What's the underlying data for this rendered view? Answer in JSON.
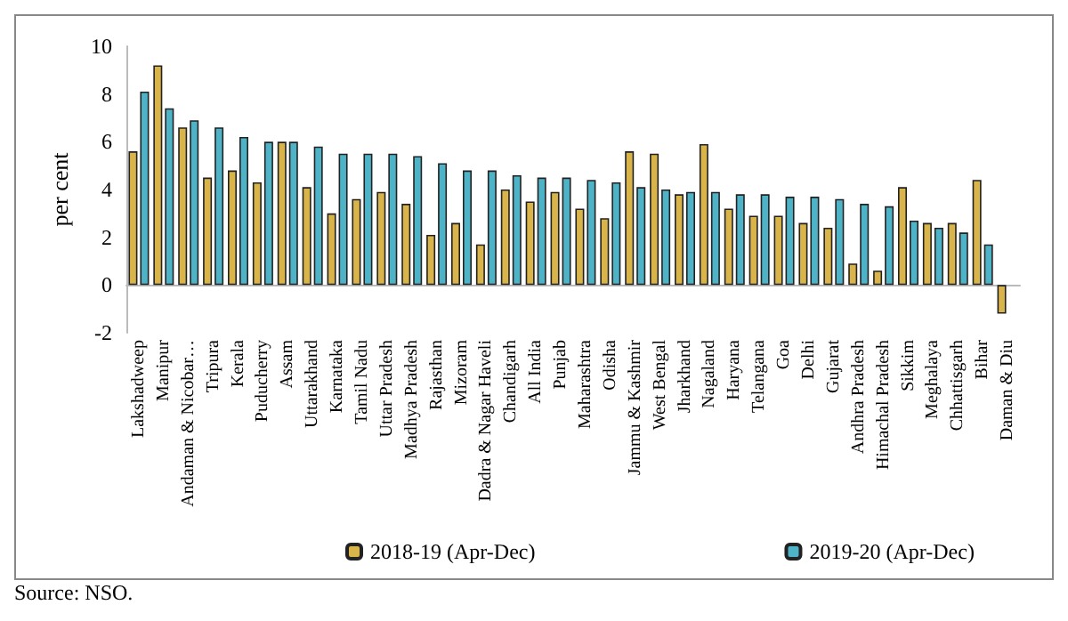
{
  "chart_data": {
    "type": "bar",
    "ylabel": "per cent",
    "categories": [
      "Lakshadweep",
      "Manipur",
      "Andaman & Nicobar…",
      "Tripura",
      "Kerala",
      "Puducherry",
      "Assam",
      "Uttarakhand",
      "Karnataka",
      "Tamil Nadu",
      "Uttar Pradesh",
      "Madhya Pradesh",
      "Rajasthan",
      "Mizoram",
      "Dadra & Nagar Haveli",
      "Chandigarh",
      "All India",
      "Punjab",
      "Maharashtra",
      "Odisha",
      "Jammu & Kashmir",
      "West Bengal",
      "Jharkhand",
      "Nagaland",
      "Haryana",
      "Telangana",
      "Goa",
      "Delhi",
      "Gujarat",
      "Andhra Pradesh",
      "Himachal Pradesh",
      "Sikkim",
      "Meghalaya",
      "Chhattisgarh",
      "Bihar",
      "Daman & Diu"
    ],
    "series": [
      {
        "name": "2018-19 (Apr-Dec)",
        "color": "#d9b44a",
        "values": [
          5.6,
          9.2,
          6.6,
          4.5,
          4.8,
          4.3,
          6.0,
          4.1,
          3.0,
          3.6,
          3.9,
          3.4,
          2.1,
          2.6,
          1.7,
          4.0,
          3.5,
          3.9,
          3.2,
          2.8,
          5.6,
          5.5,
          3.8,
          5.9,
          3.2,
          2.9,
          2.9,
          2.6,
          2.4,
          0.9,
          0.6,
          4.1,
          2.6,
          2.6,
          4.4,
          -1.2
        ]
      },
      {
        "name": "2019-20 (Apr-Dec)",
        "color": "#4fb3c8",
        "values": [
          8.1,
          7.4,
          6.9,
          6.6,
          6.2,
          6.0,
          6.0,
          5.8,
          5.5,
          5.5,
          5.5,
          5.4,
          5.1,
          4.8,
          4.8,
          4.6,
          4.5,
          4.5,
          4.4,
          4.3,
          4.1,
          4.0,
          3.9,
          3.9,
          3.8,
          3.8,
          3.7,
          3.7,
          3.6,
          3.4,
          3.3,
          2.7,
          2.4,
          2.2,
          1.7,
          null
        ]
      }
    ],
    "ylim": [
      -2,
      10
    ],
    "yticks": [
      -2,
      0,
      2,
      4,
      6,
      8,
      10
    ],
    "legend": "bottom",
    "annotations": [
      "Source: NSO."
    ]
  }
}
